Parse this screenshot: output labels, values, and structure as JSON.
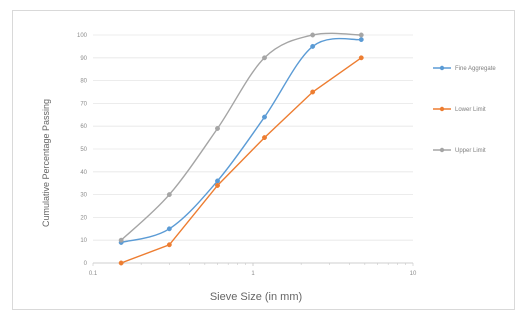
{
  "chart_data": {
    "type": "line",
    "title": "",
    "xlabel": "Sieve Size (in mm)",
    "ylabel": "Cumulative Percentage Passing",
    "x_scale": "log",
    "xlim": [
      0.1,
      10
    ],
    "ylim": [
      0,
      100
    ],
    "x_ticks": [
      {
        "value": 0.1,
        "label": "0.1"
      },
      {
        "value": 1,
        "label": "1"
      },
      {
        "value": 10,
        "label": "10"
      }
    ],
    "y_ticks": [
      {
        "value": 0,
        "label": "0"
      },
      {
        "value": 10,
        "label": "10"
      },
      {
        "value": 20,
        "label": "20"
      },
      {
        "value": 30,
        "label": "30"
      },
      {
        "value": 40,
        "label": "40"
      },
      {
        "value": 50,
        "label": "50"
      },
      {
        "value": 60,
        "label": "60"
      },
      {
        "value": 70,
        "label": "70"
      },
      {
        "value": 80,
        "label": "80"
      },
      {
        "value": 90,
        "label": "90"
      },
      {
        "value": 100,
        "label": "100"
      }
    ],
    "grid": "horizontal",
    "legend_position": "right",
    "series": [
      {
        "name": "Fine Aggregate",
        "color": "#5b9bd5",
        "smooth": true,
        "x": [
          0.15,
          0.3,
          0.6,
          1.18,
          2.36,
          4.75
        ],
        "y": [
          9,
          15,
          36,
          64,
          95,
          98
        ]
      },
      {
        "name": "Lower Limit",
        "color": "#ed7d31",
        "smooth": false,
        "x": [
          0.15,
          0.3,
          0.6,
          1.18,
          2.36,
          4.75
        ],
        "y": [
          0,
          8,
          34,
          55,
          75,
          90
        ]
      },
      {
        "name": "Upper Limit",
        "color": "#a5a5a5",
        "smooth": true,
        "x": [
          0.15,
          0.3,
          0.6,
          1.18,
          2.36,
          4.75
        ],
        "y": [
          10,
          30,
          59,
          90,
          100,
          100
        ]
      }
    ]
  }
}
